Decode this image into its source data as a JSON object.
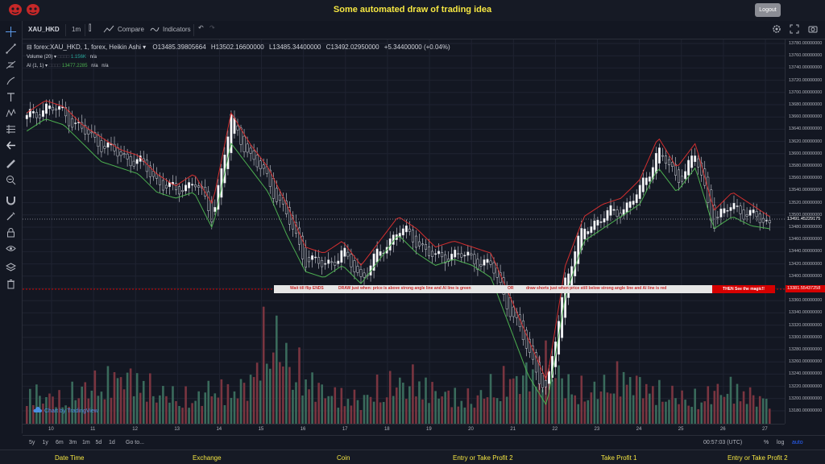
{
  "app": {
    "title": "Some automated draw of trading idea",
    "logout_label": "Logout",
    "colors": {
      "title": "#f5e642",
      "background": "#131722",
      "up": "#26a69a",
      "down": "#ef5350",
      "ai_line_green": "#4caf50",
      "ai_line_red": "#d32f2f"
    }
  },
  "toolbar": {
    "symbol": "XAU_HKD",
    "interval": "1m",
    "compare_label": "Compare",
    "indicators_label": "Indicators"
  },
  "legend": {
    "main": "forex:XAU_HKD, 1, forex, Heikin Ashi",
    "open": "O13485.39805664",
    "high": "H13502.16600000",
    "low": "L13485.34400000",
    "close": "C13492.02950000",
    "change": "+5.34400000 (+0.04%)",
    "volume_label": "Volume (20)",
    "volume_value": "1.156K",
    "volume_na": "n/a",
    "ai_label": "AI (1, 1)",
    "ai_value": "13477.2285",
    "ai_na1": "n/a",
    "ai_na2": "n/a"
  },
  "banner": {
    "part1": "Wait till flip ENDS",
    "part2": "DRAW just when:  price is above strong angle line and AI line is green",
    "part3": "OR",
    "part4": "draw shorts just when price still below strong angle line and AI line is red",
    "end_label": "THEN See the magic!!"
  },
  "price_axis": {
    "ticks": [
      "13780.00000000",
      "13760.00000000",
      "13740.00000000",
      "13720.00000000",
      "13700.00000000",
      "13680.00000000",
      "13660.00000000",
      "13640.00000000",
      "13620.00000000",
      "13600.00000000",
      "13580.00000000",
      "13560.00000000",
      "13540.00000000",
      "13520.00000000",
      "13500.00000000",
      "13480.00000000",
      "13460.00000000",
      "13440.00000000",
      "13420.00000000",
      "13400.00000000",
      "13380.00000000",
      "13360.00000000",
      "13340.00000000",
      "13320.00000000",
      "13300.00000000",
      "13280.00000000",
      "13260.00000000",
      "13240.00000000",
      "13220.00000000",
      "13200.00000000",
      "13180.00000000"
    ],
    "current_price": "13491.45229175",
    "line_price": "13381.55437258"
  },
  "time_axis": {
    "labels": [
      "10",
      "11",
      "12",
      "13",
      "14",
      "15",
      "16",
      "17",
      "18",
      "19",
      "20",
      "21",
      "22",
      "23",
      "24",
      "25",
      "26",
      "27"
    ]
  },
  "bottombar": {
    "ranges": [
      "5y",
      "1y",
      "6m",
      "3m",
      "1m",
      "5d",
      "1d"
    ],
    "goto_label": "Go to...",
    "clock": "00:57:03 (UTC)",
    "percent": "%",
    "log": "log",
    "auto": "auto"
  },
  "footer": {
    "labels": [
      "Date Time",
      "Exchange",
      "Coin",
      "Entry or Take Profit 2",
      "Take Profit 1",
      "Entry or Take Profit 2"
    ]
  },
  "watermark": "Chart by TradingView",
  "chart_data": {
    "type": "line",
    "title": "",
    "xlabel": "",
    "ylabel": "",
    "ylim": [
      13170,
      13790
    ],
    "x": [
      0,
      1,
      2,
      3,
      4,
      5,
      6,
      7,
      8,
      9,
      10,
      11,
      12,
      13,
      14,
      15,
      16,
      17,
      18,
      19,
      20,
      21,
      22,
      23,
      24,
      25,
      26,
      27,
      28,
      29,
      30,
      31,
      32,
      33,
      34,
      35,
      36,
      37,
      38,
      39,
      40
    ],
    "series": [
      {
        "values": [
          13660,
          13680,
          13670,
          13640,
          13620,
          13600,
          13590,
          13560,
          13540,
          13560,
          13500,
          13660,
          13600,
          13560,
          13500,
          13430,
          13420,
          13440,
          13400,
          13440,
          13480,
          13460,
          13430,
          13440,
          13430,
          13420,
          13350,
          13280,
          13210,
          13400,
          13480,
          13500,
          13510,
          13540,
          13610,
          13560,
          13600,
          13490,
          13520,
          13500,
          13490
        ]
      },
      {
        "values": [
          13640,
          13660,
          13650,
          13620,
          13590,
          13580,
          13570,
          13540,
          13530,
          13540,
          13480,
          13620,
          13580,
          13540,
          13470,
          13410,
          13400,
          13420,
          13390,
          13430,
          13470,
          13440,
          13420,
          13430,
          13420,
          13400,
          13320,
          13240,
          13190,
          13370,
          13460,
          13480,
          13500,
          13520,
          13580,
          13540,
          13580,
          13480,
          13500,
          13485,
          13480
        ]
      },
      {
        "values": [
          13670,
          13690,
          13680,
          13650,
          13630,
          13610,
          13600,
          13570,
          13550,
          13570,
          13520,
          13670,
          13620,
          13580,
          13520,
          13450,
          13440,
          13460,
          13420,
          13460,
          13500,
          13480,
          13450,
          13460,
          13450,
          13440,
          13370,
          13300,
          13230,
          13420,
          13500,
          13520,
          13530,
          13560,
          13630,
          13580,
          13620,
          13510,
          13540,
          13520,
          13500
        ]
      }
    ]
  },
  "volume_data": [
    40,
    35,
    30,
    45,
    50,
    60,
    55,
    40,
    35,
    30,
    45,
    40,
    50,
    120,
    80,
    60,
    40,
    35,
    30,
    45,
    50,
    55,
    40,
    35,
    30,
    45,
    55,
    60,
    80,
    50,
    40,
    45,
    60,
    50,
    40,
    35,
    30,
    40,
    45,
    35,
    30
  ]
}
